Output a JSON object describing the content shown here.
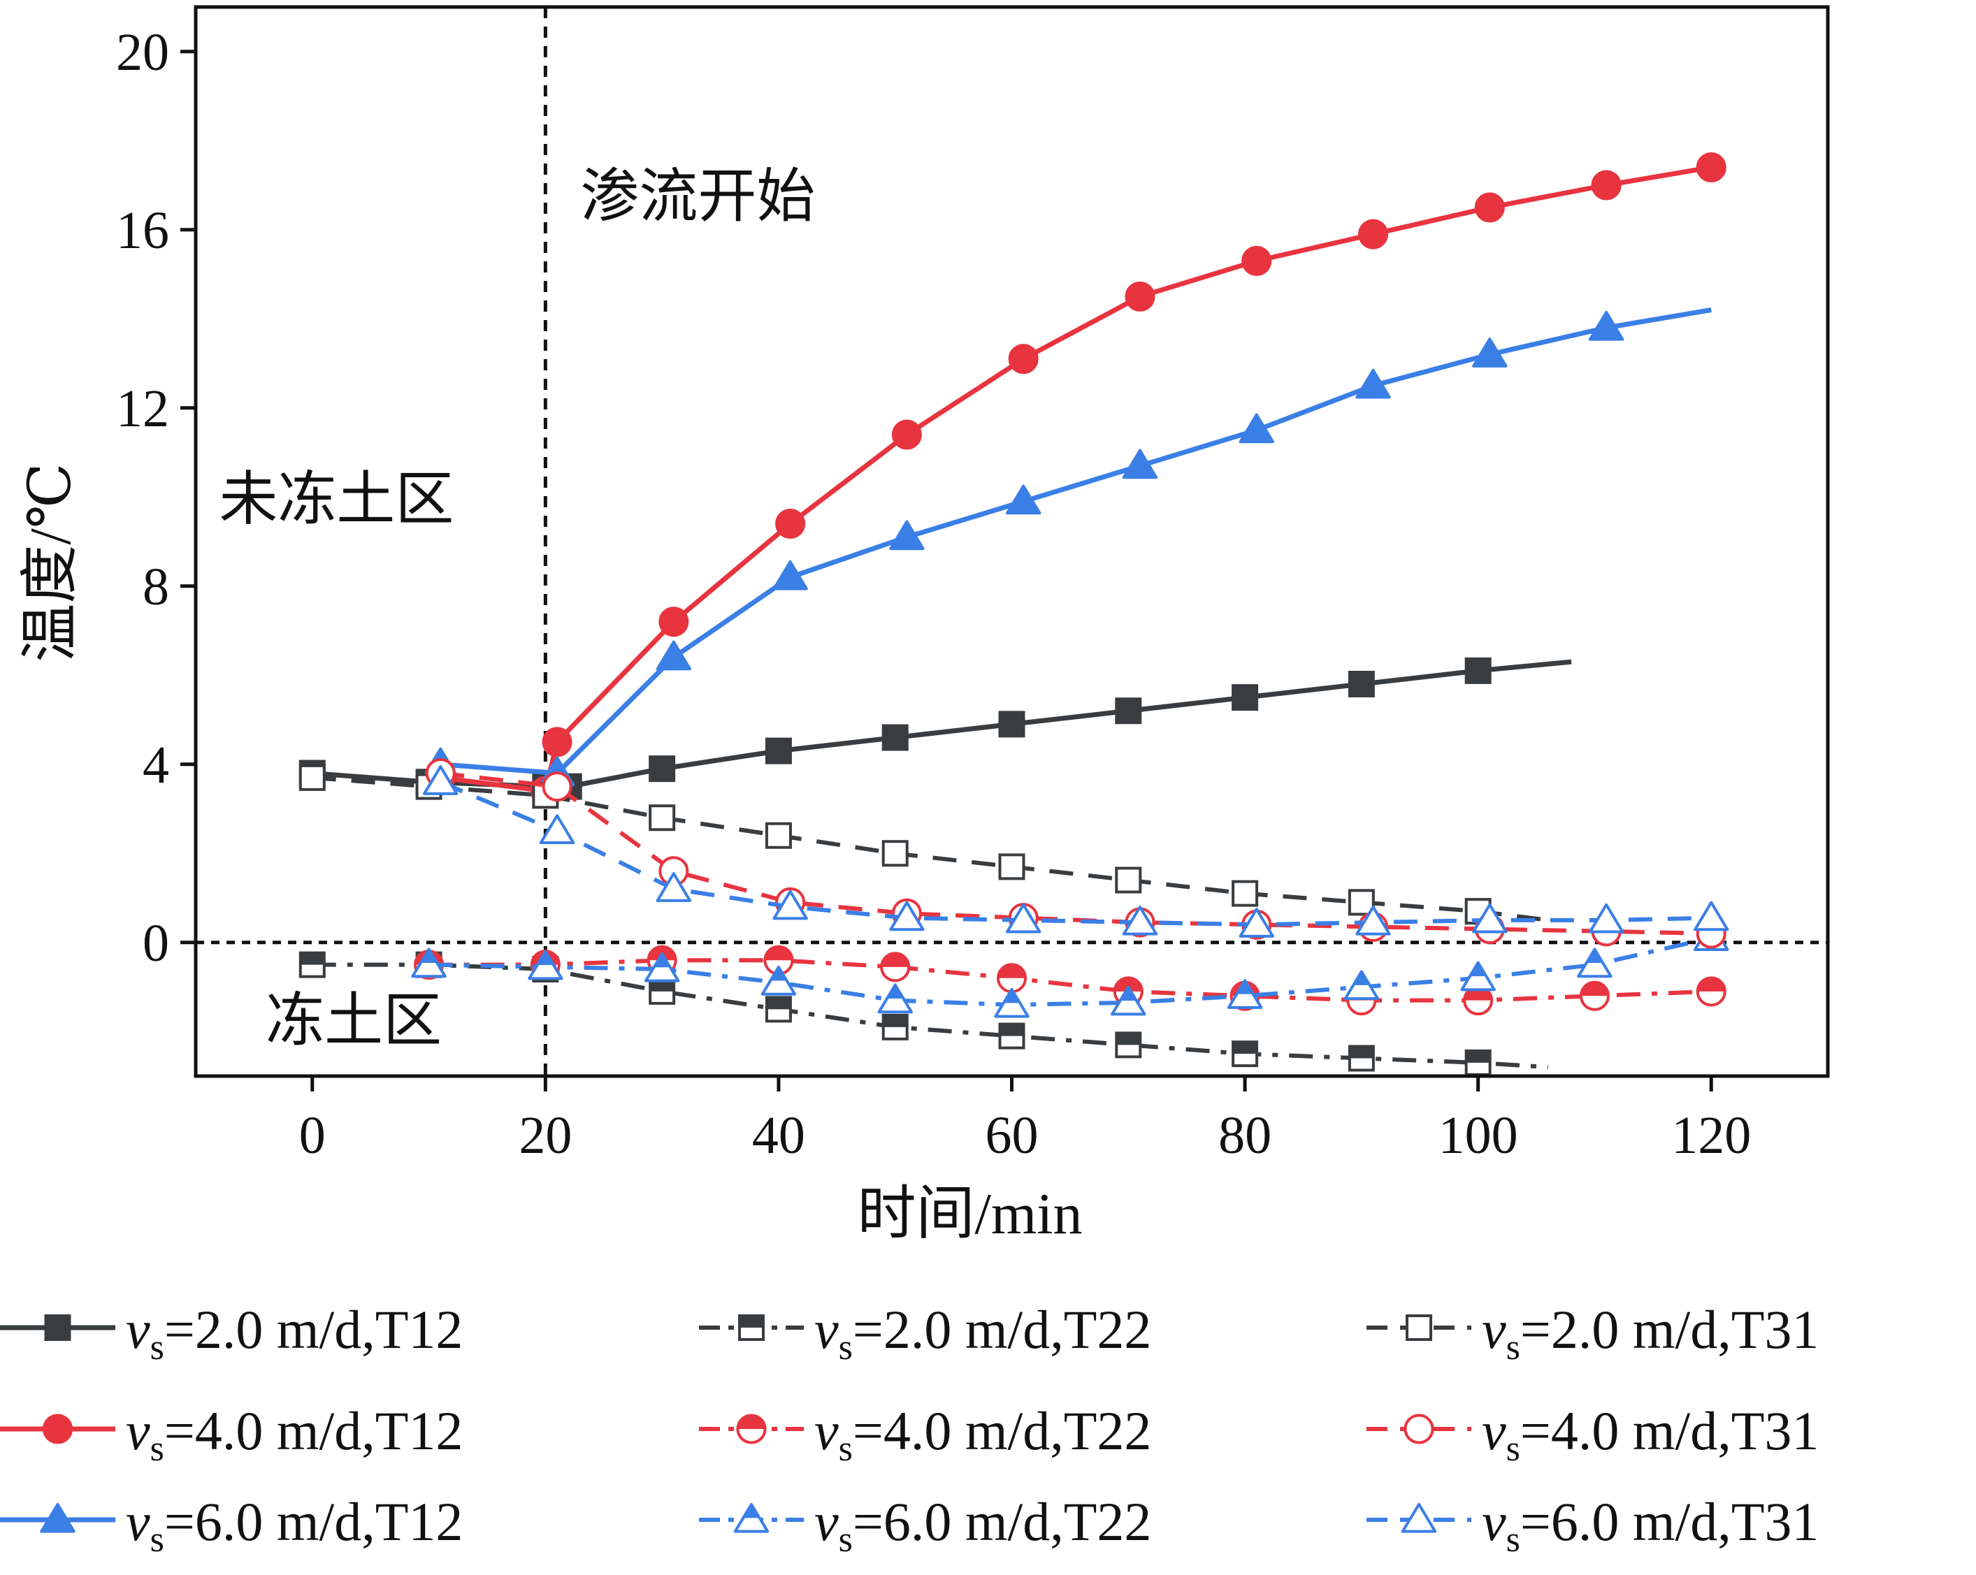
{
  "chart_data": {
    "type": "line",
    "xlabel": "时间/min",
    "ylabel": "温度/℃",
    "xlim": [
      -10,
      130
    ],
    "ylim": [
      -3,
      21
    ],
    "xticks": [
      0,
      20,
      40,
      60,
      80,
      100,
      120
    ],
    "yticks": [
      0,
      4,
      8,
      12,
      16,
      20
    ],
    "xtick_labels": [
      "0",
      "20",
      "40",
      "60",
      "80",
      "100",
      "120"
    ],
    "ytick_labels": [
      "0",
      "4",
      "8",
      "12",
      "16",
      "20"
    ],
    "grid": false,
    "legend_position": "bottom",
    "vline_x": 20,
    "hline_y": 0,
    "annotations": [
      {
        "text": "渗流开始",
        "x": 23,
        "y": 16.3
      },
      {
        "text": "未冻土区",
        "x": -8,
        "y": 9.5
      },
      {
        "text": "冻土区",
        "x": -4,
        "y": -2.2
      }
    ],
    "series": [
      {
        "name": "=2.0 m/d,T12",
        "color": "#3a3d40",
        "line": "solid",
        "marker": "square",
        "fill": "filled",
        "x": [
          0,
          10,
          20,
          22,
          30,
          40,
          50,
          60,
          70,
          80,
          90,
          100,
          108
        ],
        "y": [
          3.8,
          3.6,
          3.5,
          3.5,
          3.9,
          4.3,
          4.6,
          4.9,
          5.2,
          5.5,
          5.8,
          6.1,
          6.3
        ]
      },
      {
        "name": "=4.0 m/d,T12",
        "color": "#e8343f",
        "line": "solid",
        "marker": "circle",
        "fill": "filled",
        "x": [
          11,
          20,
          21,
          31,
          41,
          51,
          61,
          71,
          81,
          91,
          101,
          111,
          120
        ],
        "y": [
          3.7,
          3.4,
          4.5,
          7.2,
          9.4,
          11.4,
          13.1,
          14.5,
          15.3,
          15.9,
          16.5,
          17.0,
          17.4
        ]
      },
      {
        "name": "=6.0 m/d,T12",
        "color": "#3a7fe6",
        "line": "solid",
        "marker": "triangle",
        "fill": "filled",
        "x": [
          11,
          21,
          31,
          41,
          51,
          61,
          71,
          81,
          91,
          101,
          111,
          120
        ],
        "y": [
          4.0,
          3.8,
          6.4,
          8.2,
          9.1,
          9.9,
          10.7,
          11.5,
          12.5,
          13.2,
          13.8,
          14.2
        ]
      },
      {
        "name": "=2.0 m/d,T22",
        "color": "#3a3d40",
        "line": "dashdot",
        "marker": "square",
        "fill": "half",
        "x": [
          0,
          10,
          20,
          30,
          40,
          50,
          60,
          70,
          80,
          90,
          100,
          106
        ],
        "y": [
          -0.5,
          -0.5,
          -0.6,
          -1.1,
          -1.5,
          -1.9,
          -2.1,
          -2.3,
          -2.5,
          -2.6,
          -2.7,
          -2.8
        ]
      },
      {
        "name": "=4.0 m/d,T22",
        "color": "#e8343f",
        "line": "dashdot",
        "marker": "circle",
        "fill": "half",
        "x": [
          10,
          20,
          30,
          40,
          50,
          60,
          70,
          80,
          90,
          100,
          110,
          120
        ],
        "y": [
          -0.5,
          -0.5,
          -0.4,
          -0.4,
          -0.55,
          -0.8,
          -1.1,
          -1.2,
          -1.3,
          -1.3,
          -1.2,
          -1.1
        ]
      },
      {
        "name": "=6.0 m/d,T22",
        "color": "#3a7fe6",
        "line": "dashdot",
        "marker": "triangle",
        "fill": "half",
        "x": [
          10,
          20,
          30,
          40,
          50,
          60,
          70,
          80,
          90,
          100,
          110,
          120
        ],
        "y": [
          -0.5,
          -0.55,
          -0.6,
          -0.9,
          -1.3,
          -1.4,
          -1.35,
          -1.2,
          -1.0,
          -0.8,
          -0.5,
          0.1
        ]
      },
      {
        "name": "=2.0 m/d,T31",
        "color": "#3a3d40",
        "line": "dashed",
        "marker": "square",
        "fill": "open",
        "x": [
          0,
          10,
          20,
          30,
          40,
          50,
          60,
          70,
          80,
          90,
          100,
          106
        ],
        "y": [
          3.7,
          3.5,
          3.3,
          2.8,
          2.4,
          2.0,
          1.7,
          1.4,
          1.1,
          0.9,
          0.7,
          0.5
        ]
      },
      {
        "name": "=4.0 m/d,T31",
        "color": "#e8343f",
        "line": "dashed",
        "marker": "circle",
        "fill": "open",
        "x": [
          11,
          21,
          31,
          41,
          51,
          61,
          71,
          81,
          91,
          101,
          111,
          120
        ],
        "y": [
          3.8,
          3.5,
          1.6,
          0.9,
          0.65,
          0.55,
          0.45,
          0.4,
          0.35,
          0.3,
          0.25,
          0.2
        ]
      },
      {
        "name": "=6.0 m/d,T31",
        "color": "#3a7fe6",
        "line": "dashed",
        "marker": "triangle",
        "fill": "open",
        "x": [
          11,
          21,
          31,
          41,
          51,
          61,
          71,
          81,
          91,
          101,
          111,
          120
        ],
        "y": [
          3.6,
          2.5,
          1.2,
          0.8,
          0.55,
          0.5,
          0.45,
          0.4,
          0.45,
          0.5,
          0.5,
          0.55
        ]
      }
    ],
    "legend": {
      "symbol": "v",
      "subscript": "s"
    }
  }
}
